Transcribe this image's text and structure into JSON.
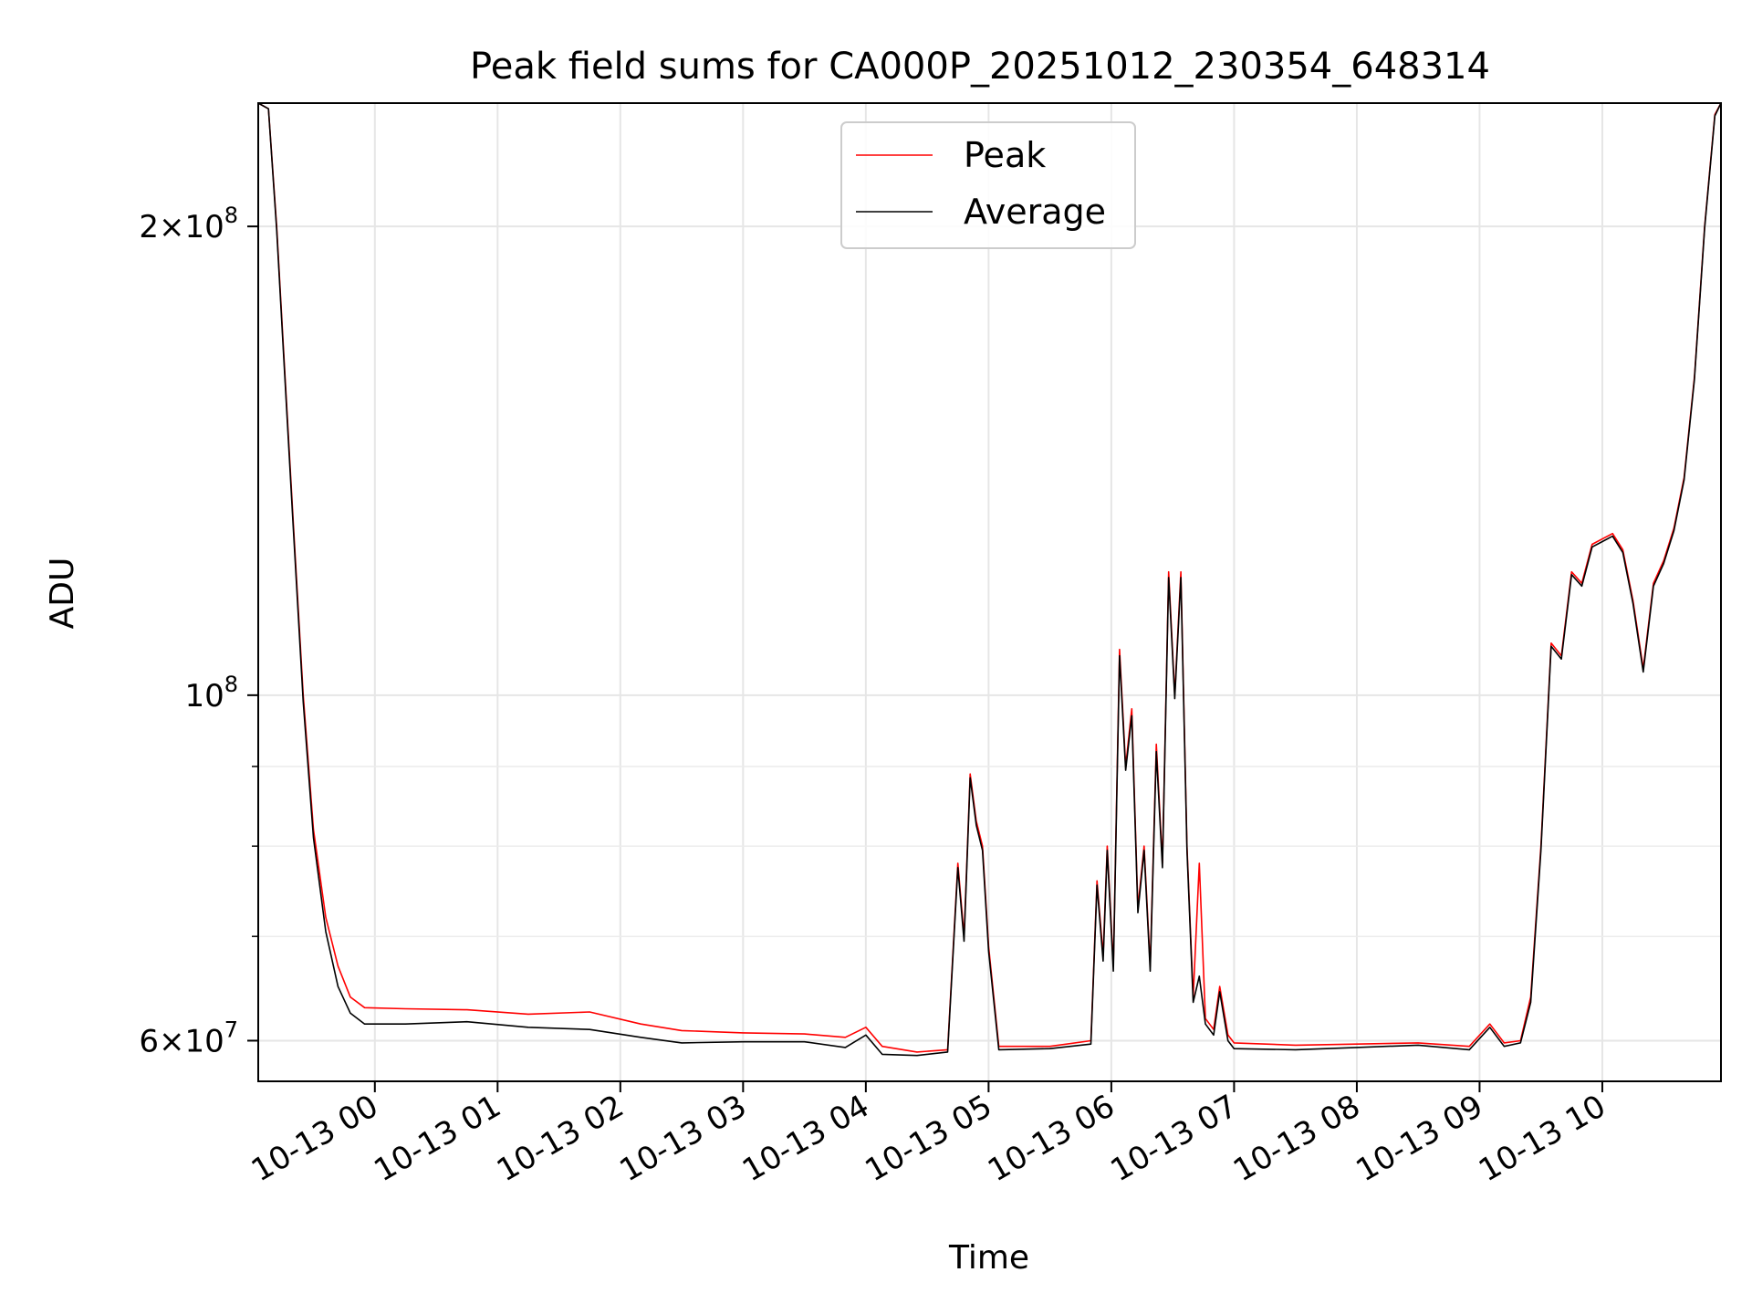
{
  "chart_data": {
    "type": "line",
    "title": "Peak field sums for CA000P_20251012_230354_648314",
    "xlabel": "Time",
    "ylabel": "ADU",
    "yscale": "log",
    "ylim": [
      56500000,
      240000000
    ],
    "xlim": [
      "2025-10-12 23:03",
      "2025-10-13 10:58"
    ],
    "x_ticks": [
      {
        "x": "2025-10-13 00:00",
        "label": "10-13 00"
      },
      {
        "x": "2025-10-13 01:00",
        "label": "10-13 01"
      },
      {
        "x": "2025-10-13 02:00",
        "label": "10-13 02"
      },
      {
        "x": "2025-10-13 03:00",
        "label": "10-13 03"
      },
      {
        "x": "2025-10-13 04:00",
        "label": "10-13 04"
      },
      {
        "x": "2025-10-13 05:00",
        "label": "10-13 05"
      },
      {
        "x": "2025-10-13 06:00",
        "label": "10-13 06"
      },
      {
        "x": "2025-10-13 07:00",
        "label": "10-13 07"
      },
      {
        "x": "2025-10-13 08:00",
        "label": "10-13 08"
      },
      {
        "x": "2025-10-13 09:00",
        "label": "10-13 09"
      },
      {
        "x": "2025-10-13 10:00",
        "label": "10-13 10"
      }
    ],
    "y_major_ticks": [
      {
        "value": 60000000,
        "base": "6",
        "exp": "7"
      },
      {
        "value": 100000000,
        "base": "",
        "exp": "8"
      },
      {
        "value": 200000000,
        "base": "2",
        "exp": "8"
      }
    ],
    "y_minor_ticks": [
      70000000,
      80000000,
      90000000
    ],
    "grid": true,
    "legend": "upper-center",
    "series": [
      {
        "name": "Peak",
        "color": "#ff0000",
        "points": [
          [
            "2025-10-12 23:03",
            240000000
          ],
          [
            "2025-10-12 23:08",
            238000000
          ],
          [
            "2025-10-12 23:12",
            200000000
          ],
          [
            "2025-10-12 23:15",
            170000000
          ],
          [
            "2025-10-12 23:20",
            130000000
          ],
          [
            "2025-10-12 23:25",
            100000000
          ],
          [
            "2025-10-12 23:30",
            82000000
          ],
          [
            "2025-10-12 23:36",
            72000000
          ],
          [
            "2025-10-12 23:42",
            67000000
          ],
          [
            "2025-10-12 23:48",
            64000000
          ],
          [
            "2025-10-12 23:55",
            63000000
          ],
          [
            "2025-10-13 00:15",
            62900000
          ],
          [
            "2025-10-13 00:45",
            62800000
          ],
          [
            "2025-10-13 01:15",
            62400000
          ],
          [
            "2025-10-13 01:45",
            62600000
          ],
          [
            "2025-10-13 02:10",
            61500000
          ],
          [
            "2025-10-13 02:30",
            60900000
          ],
          [
            "2025-10-13 03:00",
            60700000
          ],
          [
            "2025-10-13 03:30",
            60600000
          ],
          [
            "2025-10-13 03:50",
            60300000
          ],
          [
            "2025-10-13 04:00",
            61200000
          ],
          [
            "2025-10-13 04:08",
            59500000
          ],
          [
            "2025-10-13 04:25",
            59000000
          ],
          [
            "2025-10-13 04:40",
            59200000
          ],
          [
            "2025-10-13 04:45",
            78000000
          ],
          [
            "2025-10-13 04:48",
            70000000
          ],
          [
            "2025-10-13 04:51",
            89000000
          ],
          [
            "2025-10-13 04:54",
            83000000
          ],
          [
            "2025-10-13 04:57",
            80000000
          ],
          [
            "2025-10-13 05:00",
            69000000
          ],
          [
            "2025-10-13 05:05",
            59500000
          ],
          [
            "2025-10-13 05:30",
            59500000
          ],
          [
            "2025-10-13 05:50",
            60000000
          ],
          [
            "2025-10-13 05:53",
            76000000
          ],
          [
            "2025-10-13 05:56",
            68000000
          ],
          [
            "2025-10-13 05:58",
            80000000
          ],
          [
            "2025-10-13 06:01",
            67000000
          ],
          [
            "2025-10-13 06:04",
            107000000
          ],
          [
            "2025-10-13 06:07",
            90000000
          ],
          [
            "2025-10-13 06:10",
            98000000
          ],
          [
            "2025-10-13 06:13",
            73000000
          ],
          [
            "2025-10-13 06:16",
            80000000
          ],
          [
            "2025-10-13 06:19",
            67000000
          ],
          [
            "2025-10-13 06:22",
            93000000
          ],
          [
            "2025-10-13 06:25",
            78000000
          ],
          [
            "2025-10-13 06:28",
            120000000
          ],
          [
            "2025-10-13 06:31",
            100000000
          ],
          [
            "2025-10-13 06:34",
            120000000
          ],
          [
            "2025-10-13 06:37",
            80000000
          ],
          [
            "2025-10-13 06:40",
            64000000
          ],
          [
            "2025-10-13 06:43",
            78000000
          ],
          [
            "2025-10-13 06:46",
            62000000
          ],
          [
            "2025-10-13 06:50",
            61000000
          ],
          [
            "2025-10-13 06:53",
            65000000
          ],
          [
            "2025-10-13 06:57",
            60500000
          ],
          [
            "2025-10-13 07:00",
            59800000
          ],
          [
            "2025-10-13 07:30",
            59600000
          ],
          [
            "2025-10-13 08:00",
            59700000
          ],
          [
            "2025-10-13 08:30",
            59800000
          ],
          [
            "2025-10-13 08:55",
            59500000
          ],
          [
            "2025-10-13 09:05",
            61500000
          ],
          [
            "2025-10-13 09:12",
            59800000
          ],
          [
            "2025-10-13 09:20",
            60000000
          ],
          [
            "2025-10-13 09:25",
            64000000
          ],
          [
            "2025-10-13 09:30",
            80000000
          ],
          [
            "2025-10-13 09:35",
            108000000
          ],
          [
            "2025-10-13 09:40",
            106000000
          ],
          [
            "2025-10-13 09:45",
            120000000
          ],
          [
            "2025-10-13 09:50",
            118000000
          ],
          [
            "2025-10-13 09:55",
            125000000
          ],
          [
            "2025-10-13 10:00",
            126000000
          ],
          [
            "2025-10-13 10:05",
            127000000
          ],
          [
            "2025-10-13 10:10",
            124000000
          ],
          [
            "2025-10-13 10:15",
            115000000
          ],
          [
            "2025-10-13 10:20",
            104000000
          ],
          [
            "2025-10-13 10:25",
            118000000
          ],
          [
            "2025-10-13 10:30",
            122000000
          ],
          [
            "2025-10-13 10:35",
            128000000
          ],
          [
            "2025-10-13 10:40",
            138000000
          ],
          [
            "2025-10-13 10:45",
            160000000
          ],
          [
            "2025-10-13 10:50",
            200000000
          ],
          [
            "2025-10-13 10:55",
            236000000
          ],
          [
            "2025-10-13 10:58",
            240000000
          ]
        ]
      },
      {
        "name": "Average",
        "color": "#000000",
        "points": [
          [
            "2025-10-12 23:03",
            240000000
          ],
          [
            "2025-10-12 23:08",
            238000000
          ],
          [
            "2025-10-12 23:12",
            199000000
          ],
          [
            "2025-10-12 23:15",
            169000000
          ],
          [
            "2025-10-12 23:20",
            129000000
          ],
          [
            "2025-10-12 23:25",
            99000000
          ],
          [
            "2025-10-12 23:30",
            81000000
          ],
          [
            "2025-10-12 23:36",
            70500000
          ],
          [
            "2025-10-12 23:42",
            65000000
          ],
          [
            "2025-10-12 23:48",
            62500000
          ],
          [
            "2025-10-12 23:55",
            61500000
          ],
          [
            "2025-10-13 00:15",
            61500000
          ],
          [
            "2025-10-13 00:45",
            61700000
          ],
          [
            "2025-10-13 01:15",
            61200000
          ],
          [
            "2025-10-13 01:45",
            61000000
          ],
          [
            "2025-10-13 02:10",
            60300000
          ],
          [
            "2025-10-13 02:30",
            59800000
          ],
          [
            "2025-10-13 03:00",
            59900000
          ],
          [
            "2025-10-13 03:30",
            59900000
          ],
          [
            "2025-10-13 03:50",
            59400000
          ],
          [
            "2025-10-13 04:00",
            60500000
          ],
          [
            "2025-10-13 04:08",
            58800000
          ],
          [
            "2025-10-13 04:25",
            58700000
          ],
          [
            "2025-10-13 04:40",
            59000000
          ],
          [
            "2025-10-13 04:45",
            77500000
          ],
          [
            "2025-10-13 04:48",
            69500000
          ],
          [
            "2025-10-13 04:51",
            88500000
          ],
          [
            "2025-10-13 04:54",
            82500000
          ],
          [
            "2025-10-13 04:57",
            79500000
          ],
          [
            "2025-10-13 05:00",
            68500000
          ],
          [
            "2025-10-13 05:05",
            59200000
          ],
          [
            "2025-10-13 05:30",
            59300000
          ],
          [
            "2025-10-13 05:50",
            59700000
          ],
          [
            "2025-10-13 05:53",
            75500000
          ],
          [
            "2025-10-13 05:56",
            67500000
          ],
          [
            "2025-10-13 05:58",
            79500000
          ],
          [
            "2025-10-13 06:01",
            66500000
          ],
          [
            "2025-10-13 06:04",
            106000000
          ],
          [
            "2025-10-13 06:07",
            89500000
          ],
          [
            "2025-10-13 06:10",
            97000000
          ],
          [
            "2025-10-13 06:13",
            72500000
          ],
          [
            "2025-10-13 06:16",
            79500000
          ],
          [
            "2025-10-13 06:19",
            66500000
          ],
          [
            "2025-10-13 06:22",
            92000000
          ],
          [
            "2025-10-13 06:25",
            77500000
          ],
          [
            "2025-10-13 06:28",
            119000000
          ],
          [
            "2025-10-13 06:31",
            99500000
          ],
          [
            "2025-10-13 06:34",
            119000000
          ],
          [
            "2025-10-13 06:37",
            79500000
          ],
          [
            "2025-10-13 06:40",
            63500000
          ],
          [
            "2025-10-13 06:43",
            66000000
          ],
          [
            "2025-10-13 06:46",
            61500000
          ],
          [
            "2025-10-13 06:50",
            60500000
          ],
          [
            "2025-10-13 06:53",
            64500000
          ],
          [
            "2025-10-13 06:57",
            60000000
          ],
          [
            "2025-10-13 07:00",
            59300000
          ],
          [
            "2025-10-13 07:30",
            59200000
          ],
          [
            "2025-10-13 08:00",
            59400000
          ],
          [
            "2025-10-13 08:30",
            59600000
          ],
          [
            "2025-10-13 08:55",
            59200000
          ],
          [
            "2025-10-13 09:05",
            61200000
          ],
          [
            "2025-10-13 09:12",
            59500000
          ],
          [
            "2025-10-13 09:20",
            59800000
          ],
          [
            "2025-10-13 09:25",
            63500000
          ],
          [
            "2025-10-13 09:30",
            79500000
          ],
          [
            "2025-10-13 09:35",
            107500000
          ],
          [
            "2025-10-13 09:40",
            105500000
          ],
          [
            "2025-10-13 09:45",
            119500000
          ],
          [
            "2025-10-13 09:50",
            117500000
          ],
          [
            "2025-10-13 09:55",
            124500000
          ],
          [
            "2025-10-13 10:00",
            125500000
          ],
          [
            "2025-10-13 10:05",
            126500000
          ],
          [
            "2025-10-13 10:10",
            123500000
          ],
          [
            "2025-10-13 10:15",
            114500000
          ],
          [
            "2025-10-13 10:20",
            103500000
          ],
          [
            "2025-10-13 10:25",
            117500000
          ],
          [
            "2025-10-13 10:30",
            121500000
          ],
          [
            "2025-10-13 10:35",
            127500000
          ],
          [
            "2025-10-13 10:40",
            137500000
          ],
          [
            "2025-10-13 10:45",
            159500000
          ],
          [
            "2025-10-13 10:50",
            199500000
          ],
          [
            "2025-10-13 10:55",
            235500000
          ],
          [
            "2025-10-13 10:58",
            240000000
          ]
        ]
      }
    ]
  }
}
